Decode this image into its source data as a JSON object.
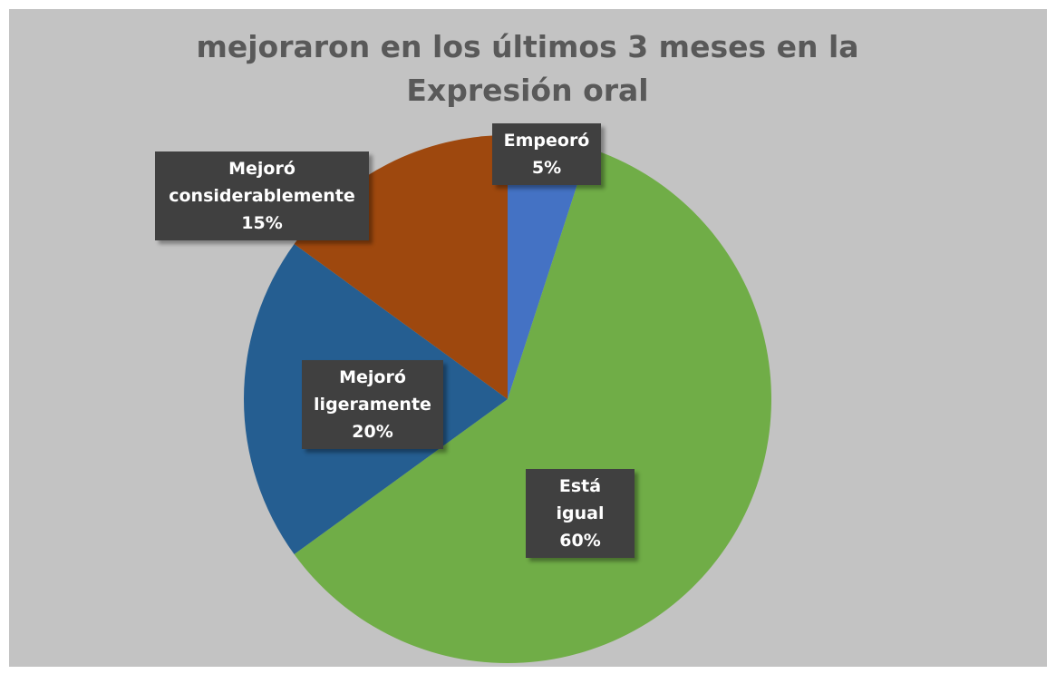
{
  "chart_data": {
    "type": "pie",
    "title": "mejoraron en los últimos 3 meses en la Expresión oral",
    "categories": [
      "Empeoró",
      "Está igual",
      "Mejoró ligeramente",
      "Mejoró considerablemente"
    ],
    "values": [
      5,
      60,
      20,
      15
    ],
    "value_labels": [
      "5%",
      "60%",
      "20%",
      "15%"
    ],
    "colors": [
      "#4472c4",
      "#70ad47",
      "#255e91",
      "#9e480e"
    ]
  }
}
